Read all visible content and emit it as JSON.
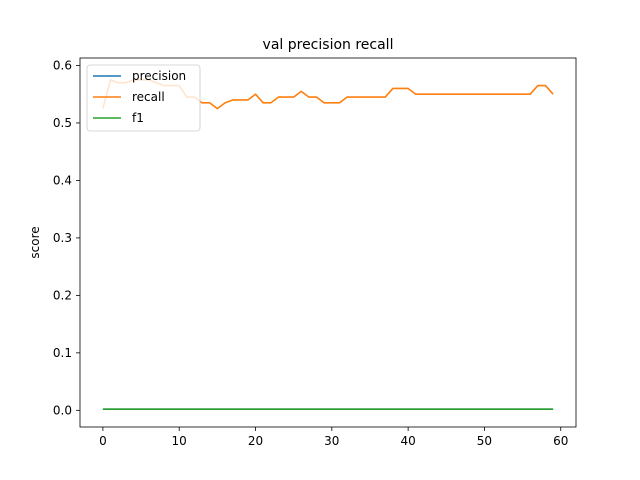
{
  "chart_data": {
    "type": "line",
    "title": "val precision recall",
    "xlabel": "",
    "ylabel": "score",
    "xlim": [
      -3,
      62
    ],
    "ylim": [
      -0.029,
      0.613
    ],
    "xticks": [
      0,
      10,
      20,
      30,
      40,
      50,
      60
    ],
    "yticks": [
      0.0,
      0.1,
      0.2,
      0.3,
      0.4,
      0.5,
      0.6
    ],
    "ytick_labels": [
      "0.0",
      "0.1",
      "0.2",
      "0.3",
      "0.4",
      "0.5",
      "0.6"
    ],
    "grid": false,
    "legend": "top-left",
    "x": [
      0,
      1,
      2,
      3,
      4,
      5,
      6,
      7,
      8,
      9,
      10,
      11,
      12,
      13,
      14,
      15,
      16,
      17,
      18,
      19,
      20,
      21,
      22,
      23,
      24,
      25,
      26,
      27,
      28,
      29,
      30,
      31,
      32,
      33,
      34,
      35,
      36,
      37,
      38,
      39,
      40,
      41,
      42,
      43,
      44,
      45,
      46,
      47,
      48,
      49,
      50,
      51,
      52,
      53,
      54,
      55,
      56,
      57,
      58,
      59
    ],
    "series": [
      {
        "name": "precision",
        "color": "#1f77b4",
        "values": [
          0.002,
          0.002,
          0.002,
          0.002,
          0.002,
          0.002,
          0.002,
          0.002,
          0.002,
          0.002,
          0.002,
          0.002,
          0.002,
          0.002,
          0.002,
          0.002,
          0.002,
          0.002,
          0.002,
          0.002,
          0.002,
          0.002,
          0.002,
          0.002,
          0.002,
          0.002,
          0.002,
          0.002,
          0.002,
          0.002,
          0.002,
          0.002,
          0.002,
          0.002,
          0.002,
          0.002,
          0.002,
          0.002,
          0.002,
          0.002,
          0.002,
          0.002,
          0.002,
          0.002,
          0.002,
          0.002,
          0.002,
          0.002,
          0.002,
          0.002,
          0.002,
          0.002,
          0.002,
          0.002,
          0.002,
          0.002,
          0.002,
          0.002,
          0.002,
          0.002
        ]
      },
      {
        "name": "recall",
        "color": "#ff7f0e",
        "values": [
          0.525,
          0.575,
          0.57,
          0.57,
          0.575,
          0.575,
          0.575,
          0.57,
          0.565,
          0.565,
          0.565,
          0.545,
          0.545,
          0.535,
          0.535,
          0.525,
          0.535,
          0.54,
          0.54,
          0.54,
          0.55,
          0.535,
          0.535,
          0.545,
          0.545,
          0.545,
          0.555,
          0.545,
          0.545,
          0.535,
          0.535,
          0.535,
          0.545,
          0.545,
          0.545,
          0.545,
          0.545,
          0.545,
          0.56,
          0.56,
          0.56,
          0.55,
          0.55,
          0.55,
          0.55,
          0.55,
          0.55,
          0.55,
          0.55,
          0.55,
          0.55,
          0.55,
          0.55,
          0.55,
          0.55,
          0.55,
          0.55,
          0.565,
          0.565,
          0.55
        ]
      },
      {
        "name": "f1",
        "color": "#2ca02c",
        "values": [
          0.002,
          0.002,
          0.002,
          0.002,
          0.002,
          0.002,
          0.002,
          0.002,
          0.002,
          0.002,
          0.002,
          0.002,
          0.002,
          0.002,
          0.002,
          0.002,
          0.002,
          0.002,
          0.002,
          0.002,
          0.002,
          0.002,
          0.002,
          0.002,
          0.002,
          0.002,
          0.002,
          0.002,
          0.002,
          0.002,
          0.002,
          0.002,
          0.002,
          0.002,
          0.002,
          0.002,
          0.002,
          0.002,
          0.002,
          0.002,
          0.002,
          0.002,
          0.002,
          0.002,
          0.002,
          0.002,
          0.002,
          0.002,
          0.002,
          0.002,
          0.002,
          0.002,
          0.002,
          0.002,
          0.002,
          0.002,
          0.002,
          0.002,
          0.002,
          0.002
        ]
      }
    ]
  }
}
